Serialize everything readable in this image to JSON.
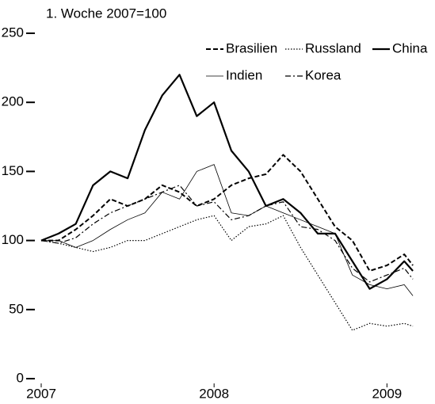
{
  "chart_data": {
    "type": "line",
    "title": "1. Woche 2007=100",
    "x": [
      2007.0,
      2007.1,
      2007.2,
      2007.3,
      2007.4,
      2007.5,
      2007.6,
      2007.7,
      2007.8,
      2007.9,
      2008.0,
      2008.1,
      2008.2,
      2008.3,
      2008.4,
      2008.5,
      2008.6,
      2008.7,
      2008.8,
      2008.9,
      2009.0,
      2009.1,
      2009.15
    ],
    "xlim": [
      2007,
      2009.2
    ],
    "xticks": [
      2007,
      2008,
      2009
    ],
    "ylim": [
      0,
      250
    ],
    "yticks": [
      0,
      50,
      100,
      150,
      200,
      250
    ],
    "grid": false,
    "legend": "top-right",
    "series": [
      {
        "name": "Brasilien",
        "color": "#000000",
        "style": "dashed",
        "width": 2,
        "values": [
          100,
          100,
          108,
          118,
          130,
          125,
          130,
          140,
          135,
          125,
          130,
          140,
          145,
          148,
          162,
          150,
          130,
          110,
          100,
          78,
          82,
          90,
          82
        ]
      },
      {
        "name": "Russland",
        "color": "#000000",
        "style": "dotted",
        "width": 1.2,
        "values": [
          100,
          98,
          95,
          92,
          95,
          100,
          100,
          105,
          110,
          115,
          118,
          100,
          110,
          112,
          118,
          95,
          75,
          55,
          35,
          40,
          38,
          40,
          38
        ]
      },
      {
        "name": "China",
        "color": "#000000",
        "style": "solid",
        "width": 2.2,
        "values": [
          100,
          105,
          112,
          140,
          150,
          145,
          180,
          205,
          220,
          190,
          200,
          165,
          150,
          125,
          130,
          120,
          105,
          105,
          85,
          65,
          72,
          85,
          78
        ]
      },
      {
        "name": "Indien",
        "color": "#000000",
        "style": "solid",
        "width": 0.8,
        "values": [
          100,
          100,
          95,
          100,
          108,
          115,
          120,
          135,
          130,
          150,
          155,
          120,
          118,
          125,
          120,
          115,
          110,
          105,
          75,
          68,
          65,
          68,
          60
        ]
      },
      {
        "name": "Korea",
        "color": "#000000",
        "style": "dashdot",
        "width": 1.2,
        "values": [
          100,
          98,
          102,
          112,
          120,
          125,
          130,
          135,
          140,
          125,
          128,
          115,
          118,
          125,
          128,
          110,
          108,
          100,
          80,
          70,
          75,
          80,
          72
        ]
      }
    ]
  }
}
